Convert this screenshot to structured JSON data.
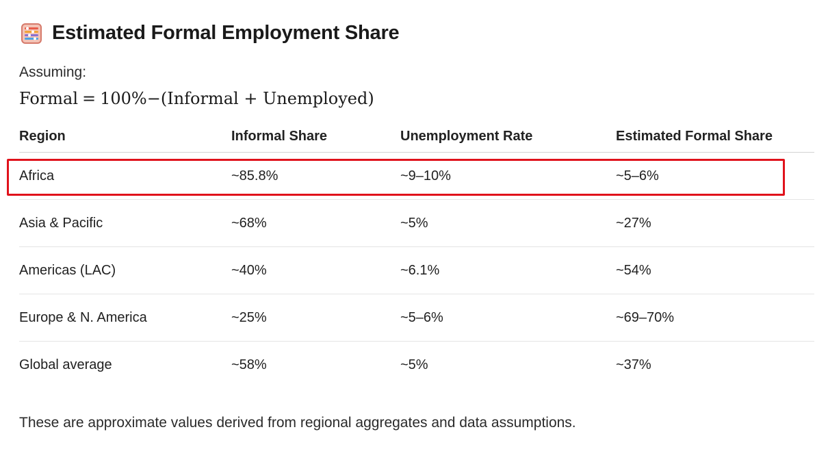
{
  "heading": {
    "icon": "abacus-icon",
    "title": "Estimated Formal Employment Share"
  },
  "assumption": {
    "label": "Assuming:",
    "formula": {
      "lhs": "Formal",
      "eq": "=",
      "total": "100%",
      "minus": "−",
      "rhs": "(Informal + Unemployed)"
    }
  },
  "table": {
    "headers": [
      "Region",
      "Informal Share",
      "Unemployment Rate",
      "Estimated Formal Share"
    ],
    "rows": [
      [
        "Africa",
        "~85.8%",
        "~9–10%",
        "~5–6%"
      ],
      [
        "Asia & Pacific",
        "~68%",
        "~5%",
        "~27%"
      ],
      [
        "Americas (LAC)",
        "~40%",
        "~6.1%",
        "~54%"
      ],
      [
        "Europe & N. America",
        "~25%",
        "~5–6%",
        "~69–70%"
      ],
      [
        "Global average",
        "~58%",
        "~5%",
        "~37%"
      ]
    ],
    "highlighted_row": "Africa",
    "highlight_color": "#e0121b"
  },
  "footnote": "These are approximate values derived from regional aggregates and data assumptions."
}
